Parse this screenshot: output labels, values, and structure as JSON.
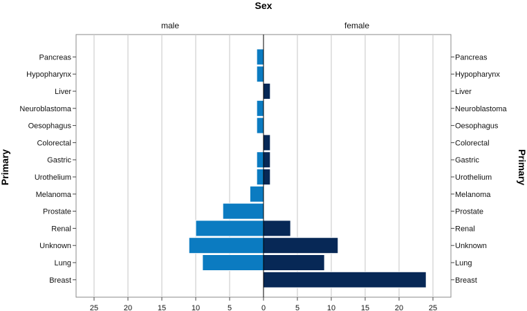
{
  "chart_data": {
    "type": "bar",
    "orientation": "horizontal",
    "layout": "population-pyramid",
    "title": "Sex",
    "ylabel_left": "Primary",
    "ylabel_right": "Primary",
    "categories": [
      "Pancreas",
      "Hypopharynx",
      "Liver",
      "Neuroblastoma",
      "Oesophagus",
      "Colorectal",
      "Gastric",
      "Urothelium",
      "Melanoma",
      "Prostate",
      "Renal",
      "Unknown",
      "Lung",
      "Breast"
    ],
    "series": [
      {
        "name": "male",
        "color": "#0b7bc1",
        "values": [
          1,
          1,
          0,
          1,
          1,
          0,
          1,
          1,
          2,
          6,
          10,
          11,
          9,
          0
        ]
      },
      {
        "name": "female",
        "color": "#072856",
        "values": [
          0,
          0,
          1,
          0,
          0,
          1,
          1,
          1,
          0,
          0,
          4,
          11,
          9,
          24
        ]
      }
    ],
    "x_ticks_left": [
      "25",
      "20",
      "15",
      "10",
      "5",
      "0"
    ],
    "x_ticks_right": [
      "5",
      "10",
      "15",
      "20",
      "25"
    ],
    "xlim": [
      0,
      27.5
    ],
    "grid": true
  }
}
